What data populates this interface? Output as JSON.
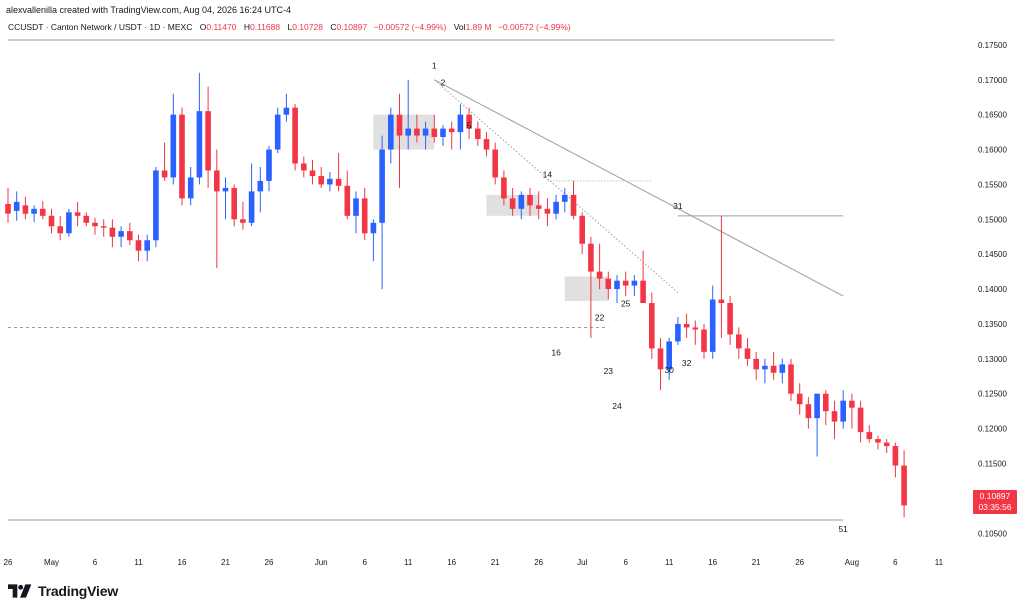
{
  "credit": "alexvallenilla created with TradingView.com, Aug 04, 2026 16:24 UTC-4",
  "legend": {
    "symbol": "CCUSDT · Canton Network / USDT · 1D · MEXC",
    "open_label": "O",
    "open": "0.11470",
    "high_label": "H",
    "high": "0.11688",
    "low_label": "L",
    "low": "0.10728",
    "close_label": "C",
    "close": "0.10897",
    "change": "−0.00572 (−4.99%)",
    "vol_label": "Vol",
    "vol": "1.89 M",
    "vol_change": "−0.00572 (−4.99%)"
  },
  "price_tag": {
    "price": "0.10897",
    "countdown": "03:35:56"
  },
  "brand": {
    "name": "TradingView",
    "logo_icon": "tradingview-logo-icon"
  },
  "colors": {
    "up": "#2962ff",
    "down": "#f23645",
    "wick_up": "#2962ff",
    "wick_down": "#f23645",
    "trendline": "#9e9e9e",
    "box": "#d6d6d6",
    "level": "#9e9e9e",
    "price_tag": "#f23645"
  },
  "chart_data": {
    "type": "candlestick",
    "symbol": "CCUSDT",
    "interval": "1D",
    "ylim": [
      0.103,
      0.178
    ],
    "y_ticks": [
      "0.17500",
      "0.17000",
      "0.16500",
      "0.16000",
      "0.15500",
      "0.15000",
      "0.14500",
      "0.14000",
      "0.13500",
      "0.13000",
      "0.12500",
      "0.12000",
      "0.11500",
      "0.11000",
      "0.10500"
    ],
    "x_ticks": [
      {
        "label": "26",
        "day": 0
      },
      {
        "label": "May",
        "day": 5
      },
      {
        "label": "6",
        "day": 10
      },
      {
        "label": "11",
        "day": 15
      },
      {
        "label": "16",
        "day": 20
      },
      {
        "label": "21",
        "day": 25
      },
      {
        "label": "26",
        "day": 30
      },
      {
        "label": "Jun",
        "day": 36
      },
      {
        "label": "6",
        "day": 41
      },
      {
        "label": "11",
        "day": 46
      },
      {
        "label": "16",
        "day": 51
      },
      {
        "label": "21",
        "day": 56
      },
      {
        "label": "26",
        "day": 61
      },
      {
        "label": "Jul",
        "day": 66
      },
      {
        "label": "6",
        "day": 71
      },
      {
        "label": "11",
        "day": 76
      },
      {
        "label": "16",
        "day": 81
      },
      {
        "label": "21",
        "day": 86
      },
      {
        "label": "26",
        "day": 91
      },
      {
        "label": "Aug",
        "day": 97
      },
      {
        "label": "6",
        "day": 102
      },
      {
        "label": "11",
        "day": 107
      }
    ],
    "candles": [
      [
        0.1522,
        0.1545,
        0.1495,
        0.1508
      ],
      [
        0.1512,
        0.154,
        0.1498,
        0.1525
      ],
      [
        0.152,
        0.1532,
        0.15,
        0.1508
      ],
      [
        0.1508,
        0.152,
        0.1496,
        0.1515
      ],
      [
        0.1515,
        0.1526,
        0.15,
        0.1505
      ],
      [
        0.1505,
        0.1515,
        0.148,
        0.149
      ],
      [
        0.149,
        0.1505,
        0.147,
        0.148
      ],
      [
        0.148,
        0.1515,
        0.1475,
        0.151
      ],
      [
        0.151,
        0.1525,
        0.149,
        0.1505
      ],
      [
        0.1505,
        0.151,
        0.149,
        0.1495
      ],
      [
        0.1495,
        0.1502,
        0.1478,
        0.149
      ],
      [
        0.149,
        0.15,
        0.1475,
        0.1488
      ],
      [
        0.1488,
        0.15,
        0.146,
        0.1475
      ],
      [
        0.1475,
        0.149,
        0.146,
        0.1483
      ],
      [
        0.1483,
        0.1495,
        0.1463,
        0.147
      ],
      [
        0.147,
        0.1478,
        0.144,
        0.1455
      ],
      [
        0.1455,
        0.1478,
        0.144,
        0.147
      ],
      [
        0.147,
        0.1575,
        0.146,
        0.157
      ],
      [
        0.157,
        0.161,
        0.1555,
        0.156
      ],
      [
        0.156,
        0.168,
        0.155,
        0.165
      ],
      [
        0.165,
        0.166,
        0.152,
        0.153
      ],
      [
        0.153,
        0.1575,
        0.152,
        0.156
      ],
      [
        0.156,
        0.171,
        0.155,
        0.1655
      ],
      [
        0.1655,
        0.169,
        0.1545,
        0.157
      ],
      [
        0.157,
        0.16,
        0.143,
        0.154
      ],
      [
        0.154,
        0.156,
        0.15,
        0.1545
      ],
      [
        0.1545,
        0.155,
        0.149,
        0.15
      ],
      [
        0.15,
        0.1525,
        0.1485,
        0.1495
      ],
      [
        0.1495,
        0.158,
        0.149,
        0.154
      ],
      [
        0.154,
        0.1575,
        0.151,
        0.1555
      ],
      [
        0.1555,
        0.1605,
        0.154,
        0.16
      ],
      [
        0.16,
        0.166,
        0.1595,
        0.165
      ],
      [
        0.165,
        0.168,
        0.164,
        0.166
      ],
      [
        0.166,
        0.1665,
        0.157,
        0.158
      ],
      [
        0.158,
        0.159,
        0.156,
        0.157
      ],
      [
        0.157,
        0.1585,
        0.155,
        0.1562
      ],
      [
        0.1562,
        0.1575,
        0.1545,
        0.155
      ],
      [
        0.155,
        0.1568,
        0.154,
        0.1558
      ],
      [
        0.1558,
        0.1595,
        0.154,
        0.1548
      ],
      [
        0.1548,
        0.157,
        0.15,
        0.1505
      ],
      [
        0.1505,
        0.154,
        0.148,
        0.153
      ],
      [
        0.153,
        0.1545,
        0.147,
        0.148
      ],
      [
        0.148,
        0.15,
        0.144,
        0.1495
      ],
      [
        0.1495,
        0.162,
        0.14,
        0.16
      ],
      [
        0.16,
        0.166,
        0.158,
        0.165
      ],
      [
        0.165,
        0.168,
        0.1545,
        0.162
      ],
      [
        0.162,
        0.17,
        0.16,
        0.163
      ],
      [
        0.163,
        0.165,
        0.161,
        0.162
      ],
      [
        0.162,
        0.164,
        0.16,
        0.163
      ],
      [
        0.163,
        0.165,
        0.161,
        0.1618
      ],
      [
        0.1618,
        0.1635,
        0.1605,
        0.163
      ],
      [
        0.163,
        0.164,
        0.16,
        0.1625
      ],
      [
        0.1625,
        0.1665,
        0.16,
        0.165
      ],
      [
        0.165,
        0.166,
        0.1615,
        0.163
      ],
      [
        0.163,
        0.164,
        0.1605,
        0.1615
      ],
      [
        0.1615,
        0.1625,
        0.159,
        0.16
      ],
      [
        0.16,
        0.161,
        0.155,
        0.156
      ],
      [
        0.156,
        0.157,
        0.152,
        0.153
      ],
      [
        0.153,
        0.1545,
        0.1505,
        0.1515
      ],
      [
        0.1515,
        0.154,
        0.15,
        0.1535
      ],
      [
        0.1535,
        0.1545,
        0.1505,
        0.152
      ],
      [
        0.152,
        0.154,
        0.15,
        0.1515
      ],
      [
        0.1515,
        0.153,
        0.149,
        0.1508
      ],
      [
        0.1508,
        0.1535,
        0.15,
        0.1525
      ],
      [
        0.1525,
        0.1545,
        0.151,
        0.1535
      ],
      [
        0.1535,
        0.1555,
        0.15,
        0.1505
      ],
      [
        0.1505,
        0.151,
        0.145,
        0.1465
      ],
      [
        0.1465,
        0.1475,
        0.133,
        0.1425
      ],
      [
        0.1425,
        0.1465,
        0.14,
        0.1415
      ],
      [
        0.1415,
        0.1425,
        0.1385,
        0.14
      ],
      [
        0.14,
        0.142,
        0.138,
        0.1412
      ],
      [
        0.1412,
        0.1425,
        0.139,
        0.1405
      ],
      [
        0.1405,
        0.142,
        0.139,
        0.1412
      ],
      [
        0.1412,
        0.1455,
        0.1385,
        0.138
      ],
      [
        0.138,
        0.1395,
        0.13,
        0.1315
      ],
      [
        0.1315,
        0.133,
        0.1255,
        0.1285
      ],
      [
        0.1285,
        0.133,
        0.127,
        0.1325
      ],
      [
        0.1325,
        0.136,
        0.132,
        0.135
      ],
      [
        0.135,
        0.1365,
        0.133,
        0.1345
      ],
      [
        0.1345,
        0.1355,
        0.132,
        0.1342
      ],
      [
        0.1342,
        0.135,
        0.13,
        0.131
      ],
      [
        0.131,
        0.1405,
        0.13,
        0.1385
      ],
      [
        0.1385,
        0.1505,
        0.133,
        0.138
      ],
      [
        0.138,
        0.139,
        0.132,
        0.1335
      ],
      [
        0.1335,
        0.1345,
        0.13,
        0.1315
      ],
      [
        0.1315,
        0.133,
        0.129,
        0.13
      ],
      [
        0.13,
        0.131,
        0.127,
        0.1285
      ],
      [
        0.1285,
        0.13,
        0.1265,
        0.129
      ],
      [
        0.129,
        0.131,
        0.127,
        0.128
      ],
      [
        0.128,
        0.13,
        0.1265,
        0.1292
      ],
      [
        0.1292,
        0.13,
        0.124,
        0.125
      ],
      [
        0.125,
        0.1265,
        0.122,
        0.1235
      ],
      [
        0.1235,
        0.1245,
        0.12,
        0.1215
      ],
      [
        0.1215,
        0.125,
        0.116,
        0.125
      ],
      [
        0.125,
        0.1255,
        0.1205,
        0.1225
      ],
      [
        0.1225,
        0.124,
        0.1185,
        0.121
      ],
      [
        0.121,
        0.1255,
        0.12,
        0.124
      ],
      [
        0.124,
        0.125,
        0.12,
        0.123
      ],
      [
        0.123,
        0.124,
        0.118,
        0.1195
      ],
      [
        0.1195,
        0.1205,
        0.118,
        0.1185
      ],
      [
        0.1185,
        0.119,
        0.117,
        0.118
      ],
      [
        0.118,
        0.1185,
        0.1165,
        0.1175
      ],
      [
        0.1175,
        0.118,
        0.113,
        0.1147
      ],
      [
        0.1147,
        0.1169,
        0.1073,
        0.109
      ]
    ],
    "wave_labels": [
      {
        "text": "1",
        "day": 49,
        "price": 0.1716
      },
      {
        "text": "2",
        "day": 50,
        "price": 0.1692
      },
      {
        "text": "5",
        "day": 53,
        "price": 0.163
      },
      {
        "text": "14",
        "day": 62,
        "price": 0.156
      },
      {
        "text": "16",
        "day": 63,
        "price": 0.1305
      },
      {
        "text": "22",
        "day": 68,
        "price": 0.1355
      },
      {
        "text": "25",
        "day": 71,
        "price": 0.1375
      },
      {
        "text": "23",
        "day": 69,
        "price": 0.1278
      },
      {
        "text": "24",
        "day": 70,
        "price": 0.1228
      },
      {
        "text": "30",
        "day": 76,
        "price": 0.128
      },
      {
        "text": "31",
        "day": 77,
        "price": 0.1515
      },
      {
        "text": "32",
        "day": 78,
        "price": 0.129
      },
      {
        "text": "51",
        "day": 96,
        "price": 0.1052
      }
    ],
    "levels": [
      {
        "price": 0.1757,
        "from": 0,
        "to": 95,
        "style": "solid"
      },
      {
        "price": 0.1505,
        "from": 77,
        "to": 96,
        "style": "solid"
      },
      {
        "price": 0.1555,
        "from": 62,
        "to": 74,
        "style": "dotted"
      },
      {
        "price": 0.1345,
        "from": 0,
        "to": 69,
        "style": "dashed"
      },
      {
        "price": 0.1069,
        "from": 0,
        "to": 96,
        "style": "solid"
      }
    ],
    "trendlines": [
      {
        "from": [
          49,
          0.17
        ],
        "to": [
          96,
          0.139
        ],
        "style": "solid"
      },
      {
        "from": [
          49,
          0.17
        ],
        "to": [
          77,
          0.1395
        ],
        "style": "dotted"
      }
    ],
    "boxes": [
      {
        "x0": 42,
        "x1": 49,
        "p0": 0.165,
        "p1": 0.16
      },
      {
        "x0": 55,
        "x1": 61,
        "p0": 0.1535,
        "p1": 0.1505
      },
      {
        "x0": 64,
        "x1": 69,
        "p0": 0.1418,
        "p1": 0.1383
      }
    ]
  }
}
